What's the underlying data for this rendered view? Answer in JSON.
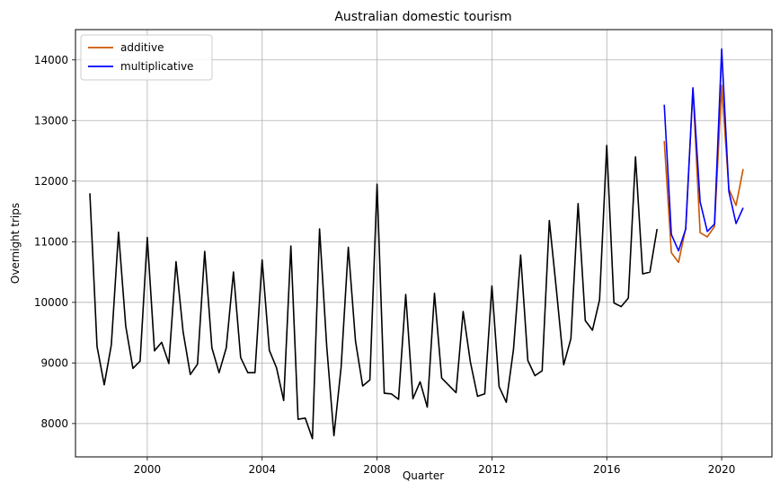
{
  "chart_data": {
    "type": "line",
    "title": "Australian domestic tourism",
    "xlabel": "Quarter",
    "ylabel": "Overnight trips",
    "xlim": [
      1997.5,
      2021.75
    ],
    "ylim": [
      7450,
      14500
    ],
    "x_ticks": [
      2000,
      2004,
      2008,
      2012,
      2016,
      2020
    ],
    "y_ticks": [
      8000,
      9000,
      10000,
      11000,
      12000,
      13000,
      14000
    ],
    "grid": true,
    "legend_position": "top-left",
    "series": [
      {
        "color": "#000000",
        "x": [
          1998.0,
          1998.25,
          1998.5,
          1998.75,
          1999.0,
          1999.25,
          1999.5,
          1999.75,
          2000.0,
          2000.25,
          2000.5,
          2000.75,
          2001.0,
          2001.25,
          2001.5,
          2001.75,
          2002.0,
          2002.25,
          2002.5,
          2002.75,
          2003.0,
          2003.25,
          2003.5,
          2003.75,
          2004.0,
          2004.25,
          2004.5,
          2004.75,
          2005.0,
          2005.25,
          2005.5,
          2005.75,
          2006.0,
          2006.25,
          2006.5,
          2006.75,
          2007.0,
          2007.25,
          2007.5,
          2007.75,
          2008.0,
          2008.25,
          2008.5,
          2008.75,
          2009.0,
          2009.25,
          2009.5,
          2009.75,
          2010.0,
          2010.25,
          2010.5,
          2010.75,
          2011.0,
          2011.25,
          2011.5,
          2011.75,
          2012.0,
          2012.25,
          2012.5,
          2012.75,
          2013.0,
          2013.25,
          2013.5,
          2013.75,
          2014.0,
          2014.25,
          2014.5,
          2014.75,
          2015.0,
          2015.25,
          2015.5,
          2015.75,
          2016.0,
          2016.25,
          2016.5,
          2016.75,
          2017.0,
          2017.25,
          2017.5,
          2017.75
        ],
        "values": [
          11800,
          9270,
          8640,
          9300,
          11160,
          9610,
          8910,
          9030,
          11070,
          9200,
          9340,
          8990,
          10670,
          9510,
          8810,
          8980,
          10840,
          9250,
          8840,
          9250,
          10500,
          9090,
          8840,
          8840,
          10700,
          9210,
          8920,
          8380,
          10930,
          8070,
          8090,
          7750,
          11210,
          9270,
          7800,
          8930,
          10910,
          9360,
          8620,
          8720,
          11950,
          8500,
          8490,
          8400,
          10130,
          8410,
          8690,
          8270,
          10150,
          8750,
          8630,
          8510,
          9850,
          9020,
          8450,
          8490,
          10270,
          8610,
          8350,
          9220,
          10780,
          9040,
          8790,
          8870,
          11350,
          10190,
          8970,
          9400,
          11630,
          9700,
          9540,
          10040,
          12590,
          9990,
          9930,
          10070,
          12400,
          10470,
          10500,
          11210
        ]
      },
      {
        "name": "additive",
        "color": "#cc5500",
        "x": [
          2018.0,
          2018.25,
          2018.5,
          2018.75,
          2019.0,
          2019.25,
          2019.5,
          2019.75,
          2020.0,
          2020.25,
          2020.5,
          2020.75
        ],
        "values": [
          12660,
          10820,
          10660,
          11230,
          13520,
          11150,
          11080,
          11250,
          13580,
          11870,
          11600,
          12200
        ]
      },
      {
        "name": "multiplicative",
        "color": "#0000ff",
        "x": [
          2018.0,
          2018.25,
          2018.5,
          2018.75,
          2019.0,
          2019.25,
          2019.5,
          2019.75,
          2020.0,
          2020.25,
          2020.5,
          2020.75
        ],
        "values": [
          13260,
          11120,
          10850,
          11210,
          13540,
          11660,
          11170,
          11290,
          14180,
          11830,
          11300,
          11560
        ]
      }
    ]
  }
}
